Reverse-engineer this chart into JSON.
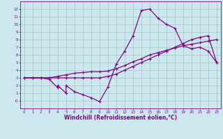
{
  "xlabel": "Windchill (Refroidissement éolien,°C)",
  "background_color": "#cce8ee",
  "grid_color": "#99ccbb",
  "line_color": "#880088",
  "xlim": [
    -0.5,
    23.5
  ],
  "ylim": [
    -1.0,
    13.0
  ],
  "xticks": [
    0,
    1,
    2,
    3,
    4,
    5,
    6,
    7,
    8,
    9,
    10,
    11,
    12,
    13,
    14,
    15,
    16,
    17,
    18,
    19,
    20,
    21,
    22,
    23
  ],
  "yticks": [
    0,
    1,
    2,
    3,
    4,
    5,
    6,
    7,
    8,
    9,
    10,
    11,
    12
  ],
  "ytick_labels": [
    "-0",
    "1",
    "2",
    "3",
    "4",
    "5",
    "6",
    "7",
    "8",
    "9",
    "10",
    "11",
    "12"
  ],
  "s1_x": [
    0,
    1,
    2,
    3,
    4,
    5,
    6,
    7,
    8,
    9,
    10,
    11,
    12,
    13,
    14,
    15,
    16,
    17,
    18,
    19,
    20,
    21,
    22,
    23
  ],
  "s1_y": [
    3.0,
    3.0,
    3.0,
    3.0,
    3.2,
    3.4,
    3.6,
    3.7,
    3.8,
    3.8,
    3.9,
    4.2,
    4.6,
    5.1,
    5.5,
    6.0,
    6.3,
    6.6,
    6.9,
    7.2,
    7.4,
    7.6,
    7.8,
    8.0
  ],
  "s2_x": [
    0,
    1,
    2,
    3,
    4,
    5,
    6,
    7,
    8,
    9,
    10,
    11,
    12,
    13,
    14,
    15,
    16,
    17,
    18,
    19,
    20,
    21,
    22,
    23
  ],
  "s2_y": [
    3.0,
    3.0,
    3.0,
    3.0,
    3.0,
    3.0,
    3.0,
    3.0,
    3.0,
    3.0,
    3.2,
    3.5,
    4.0,
    4.5,
    5.0,
    5.5,
    6.0,
    6.5,
    7.0,
    7.5,
    8.0,
    8.3,
    8.5,
    5.0
  ],
  "s3_x": [
    0,
    1,
    2,
    3,
    4,
    4,
    5,
    5,
    6,
    7,
    8,
    9,
    10,
    11,
    12,
    13,
    14,
    15,
    16,
    17,
    18,
    19,
    20,
    21,
    22,
    23
  ],
  "s3_y": [
    3.0,
    3.0,
    3.0,
    2.8,
    1.7,
    2.0,
    1.0,
    2.0,
    1.2,
    0.8,
    0.4,
    -0.1,
    1.8,
    4.8,
    6.5,
    8.5,
    11.8,
    12.0,
    10.8,
    10.0,
    9.5,
    7.2,
    6.8,
    7.0,
    6.5,
    5.0
  ]
}
